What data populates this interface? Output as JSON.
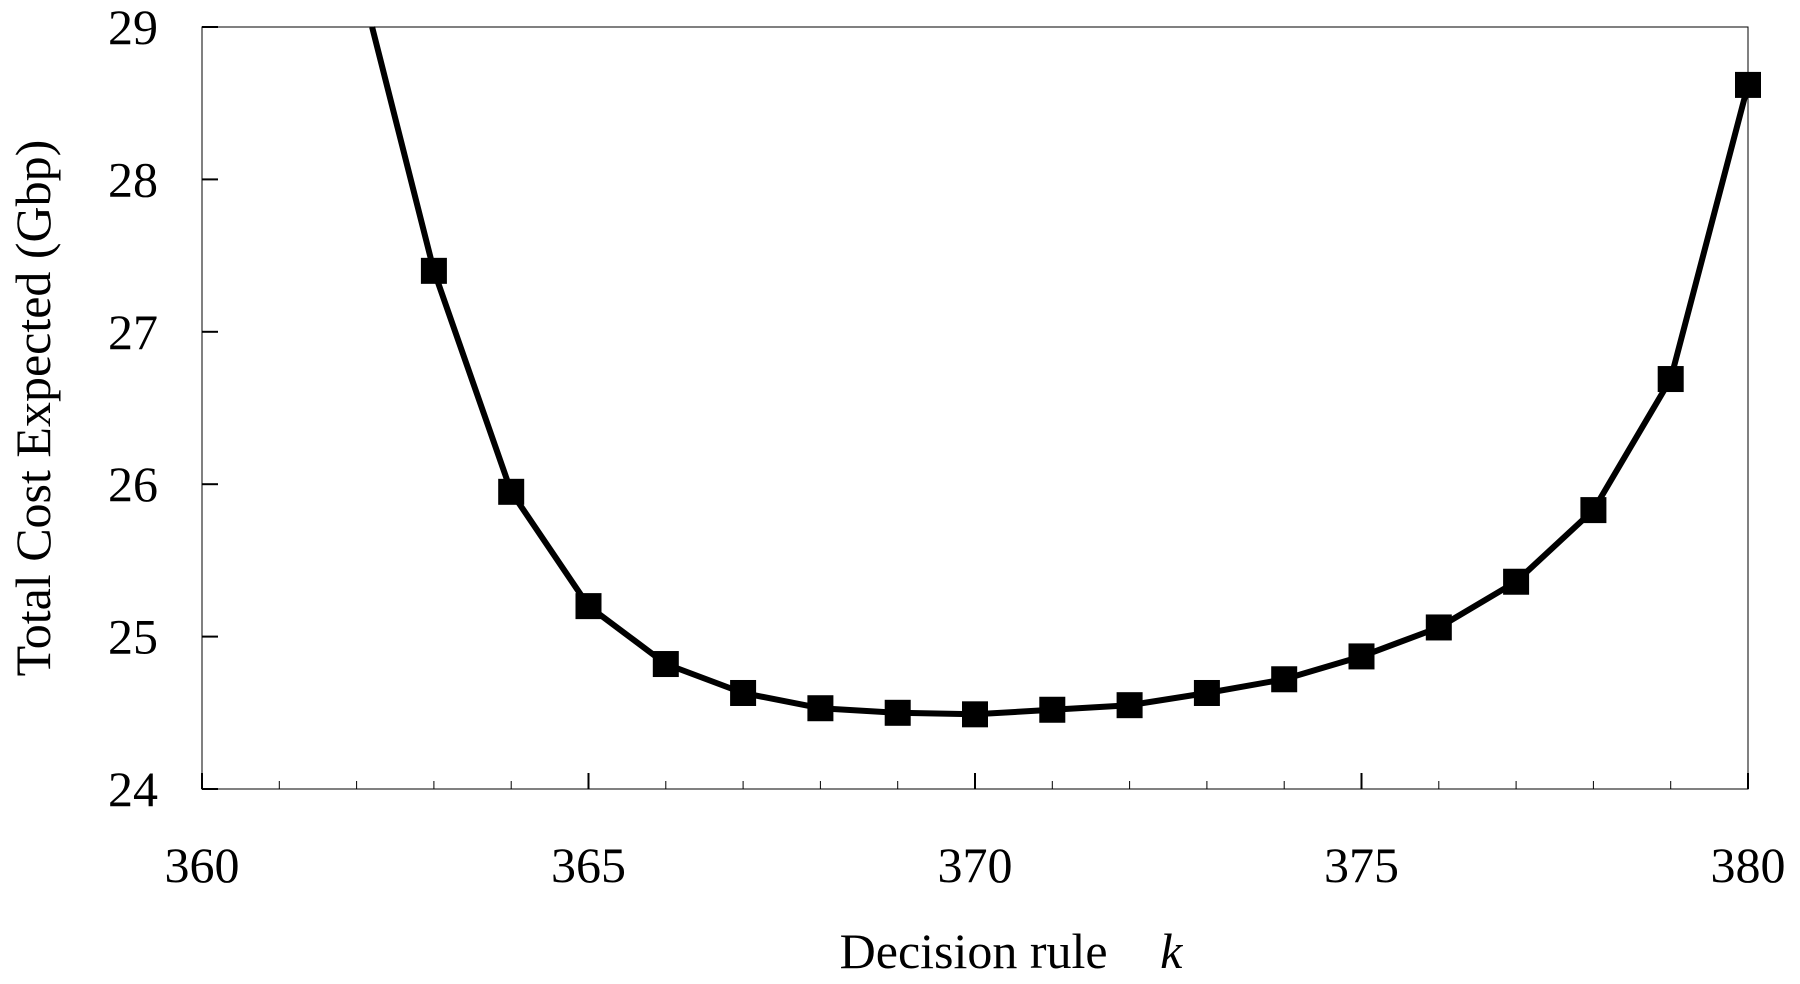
{
  "chart_data": {
    "type": "line",
    "xlabel": "Decision rule",
    "xlabel_var": "k",
    "ylabel": "Total Cost Expected (Gbp)",
    "xlim": [
      360,
      380
    ],
    "ylim": [
      24,
      29
    ],
    "x_ticks": [
      360,
      365,
      370,
      375,
      380
    ],
    "y_ticks": [
      24,
      25,
      26,
      27,
      28,
      29
    ],
    "x_minor_step": 1,
    "grid": false,
    "marker": "square",
    "line_color": "#000000",
    "curve_top_entry": {
      "x": 362.2,
      "y": 29
    },
    "series": [
      {
        "x": [
          363,
          364,
          365,
          366,
          367,
          368,
          369,
          370,
          371,
          372,
          373,
          374,
          375,
          376,
          377,
          378,
          379,
          380
        ],
        "values": [
          27.4,
          25.95,
          25.2,
          24.82,
          24.63,
          24.53,
          24.5,
          24.49,
          24.52,
          24.55,
          24.63,
          24.72,
          24.87,
          25.06,
          25.36,
          25.83,
          26.69,
          28.62
        ]
      }
    ]
  }
}
